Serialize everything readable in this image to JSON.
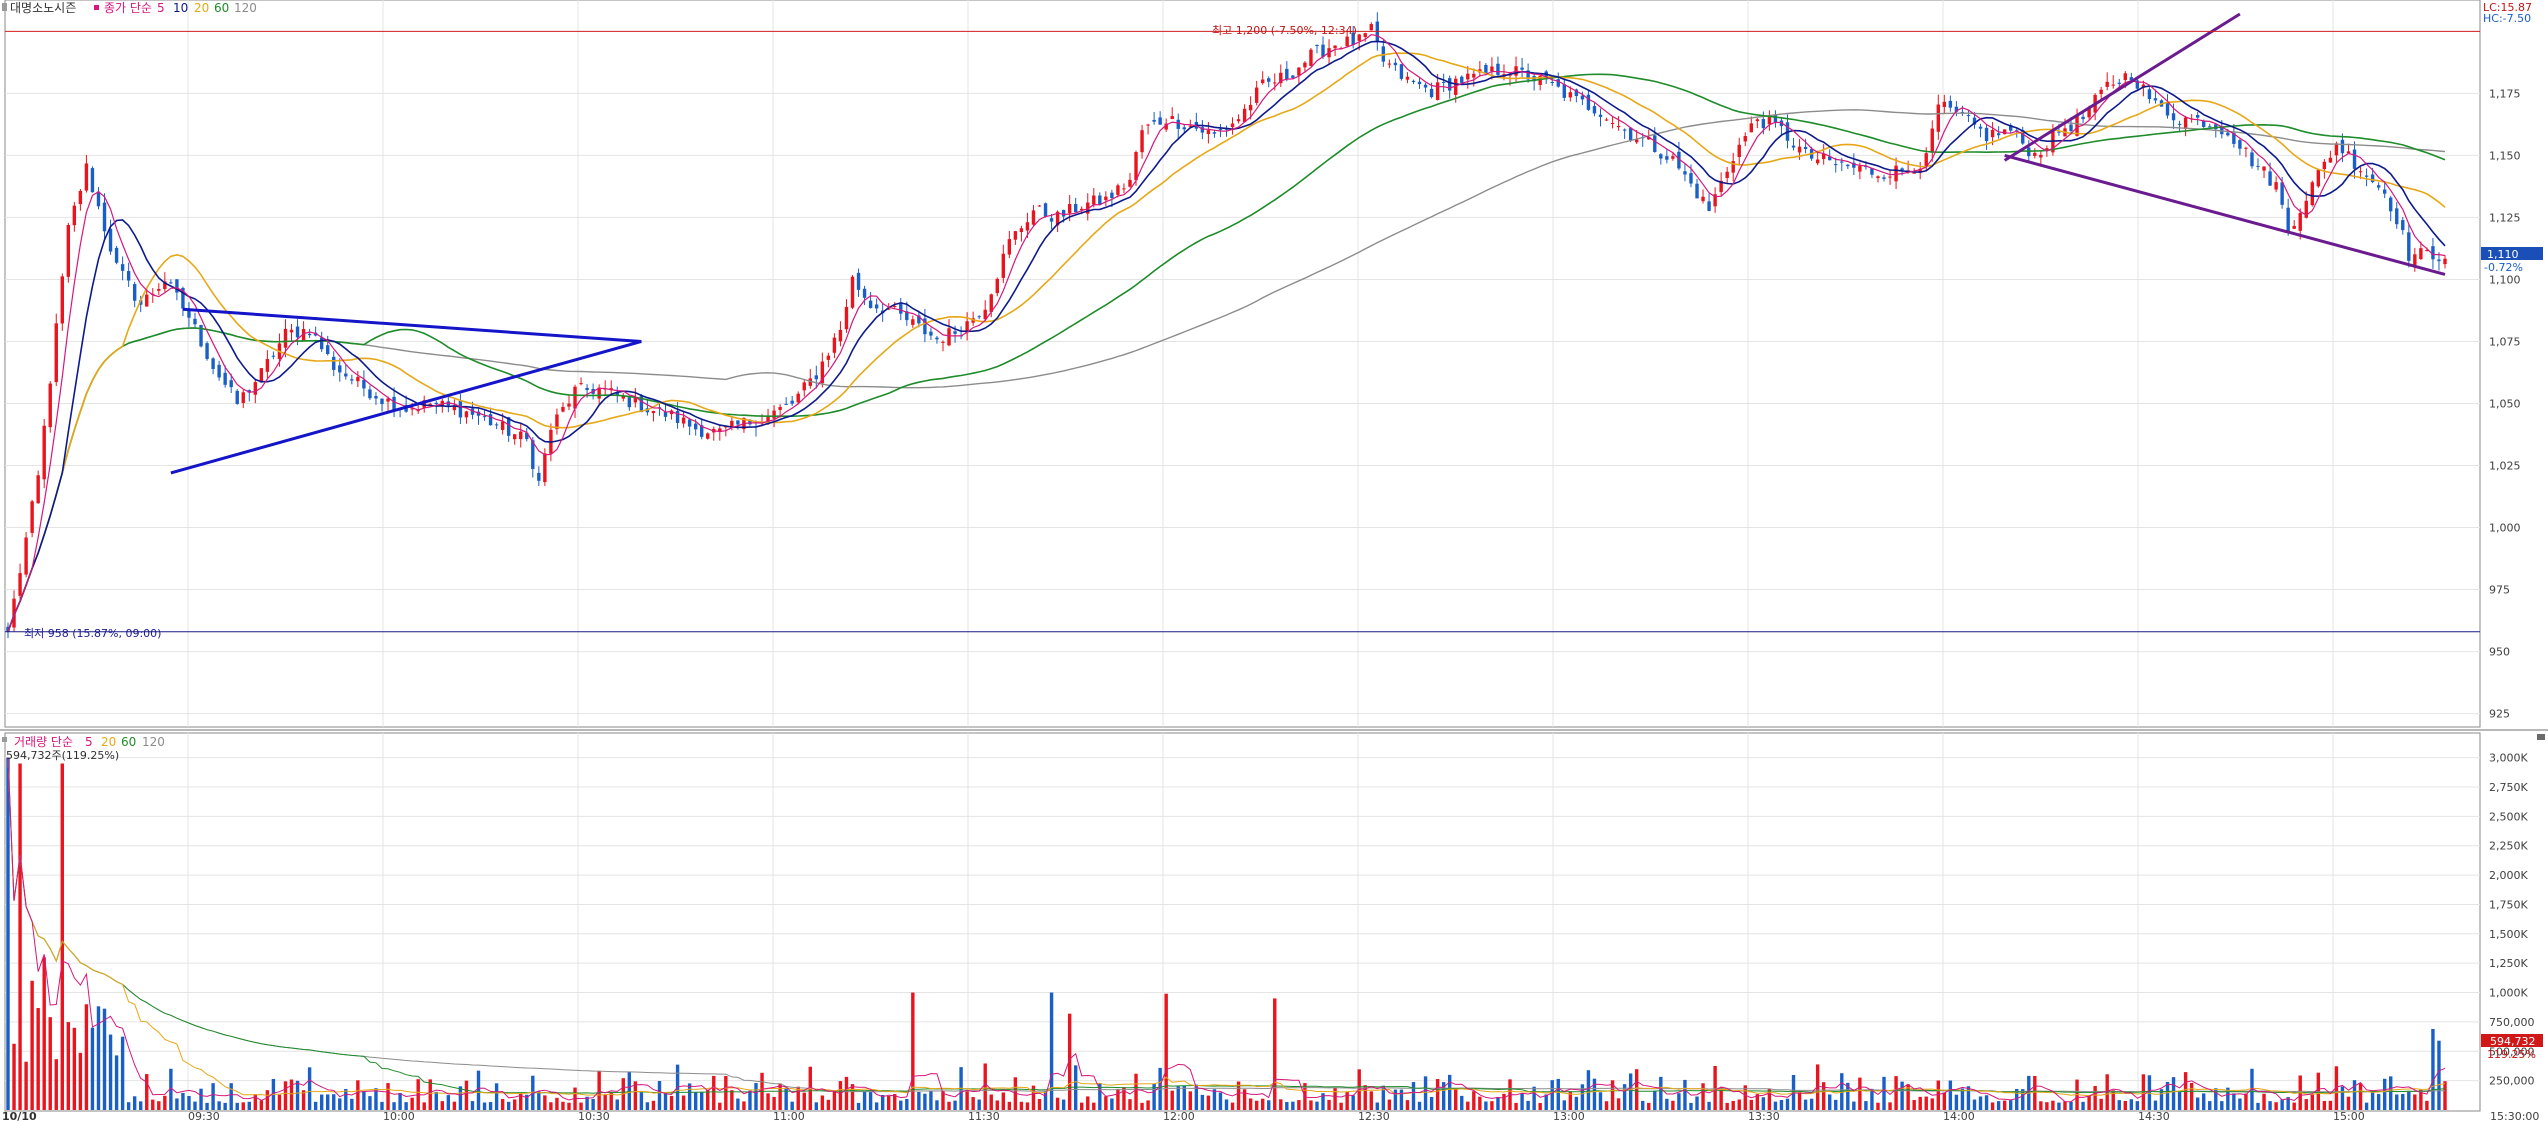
{
  "chart_data": [
    {
      "type": "candlestick",
      "panel": "price",
      "stock_name": "대명소노시즌",
      "ma_title": "종가 단순",
      "ma_periods": [
        "5",
        "10",
        "20",
        "60",
        "120"
      ],
      "y_ticks": [
        "1,175",
        "1,150",
        "1,125",
        "1,100",
        "1,075",
        "1,050",
        "1,025",
        "1,000",
        "975",
        "950",
        "925"
      ],
      "ylim": [
        920,
        1207
      ],
      "high_annotation": "최고 1,200 (-7.50%, 12:34)",
      "low_annotation": "최저 958 (15.87%, 09:00)",
      "high_value": 1200,
      "low_value": 958,
      "current_price": "1,110",
      "current_change": "-0.72%",
      "lc_label": "LC:15.87",
      "hc_label": "HC:-7.50",
      "series": [
        {
          "name": "price",
          "anchors": [
            [
              0,
              958
            ],
            [
              5,
              1020
            ],
            [
              10,
              1120
            ],
            [
              13,
              1145
            ],
            [
              18,
              1105
            ],
            [
              22,
              1090
            ],
            [
              26,
              1100
            ],
            [
              30,
              1085
            ],
            [
              34,
              1065
            ],
            [
              38,
              1050
            ],
            [
              42,
              1062
            ],
            [
              46,
              1078
            ],
            [
              50,
              1080
            ],
            [
              54,
              1065
            ],
            [
              58,
              1058
            ],
            [
              62,
              1052
            ],
            [
              66,
              1048
            ],
            [
              70,
              1050
            ],
            [
              74,
              1048
            ],
            [
              78,
              1045
            ],
            [
              82,
              1040
            ],
            [
              86,
              1035
            ],
            [
              88,
              1018
            ],
            [
              90,
              1040
            ],
            [
              94,
              1055
            ],
            [
              98,
              1056
            ],
            [
              102,
              1052
            ],
            [
              106,
              1048
            ],
            [
              110,
              1045
            ],
            [
              114,
              1040
            ],
            [
              118,
              1038
            ],
            [
              122,
              1042
            ],
            [
              126,
              1045
            ],
            [
              130,
              1050
            ],
            [
              134,
              1062
            ],
            [
              138,
              1080
            ],
            [
              140,
              1100
            ],
            [
              143,
              1090
            ],
            [
              146,
              1088
            ],
            [
              150,
              1082
            ],
            [
              154,
              1076
            ],
            [
              158,
              1080
            ],
            [
              162,
              1090
            ],
            [
              166,
              1115
            ],
            [
              170,
              1128
            ],
            [
              174,
              1125
            ],
            [
              178,
              1130
            ],
            [
              182,
              1132
            ],
            [
              186,
              1140
            ],
            [
              188,
              1160
            ],
            [
              192,
              1165
            ],
            [
              196,
              1162
            ],
            [
              200,
              1158
            ],
            [
              204,
              1165
            ],
            [
              208,
              1178
            ],
            [
              212,
              1182
            ],
            [
              216,
              1190
            ],
            [
              220,
              1195
            ],
            [
              224,
              1196
            ],
            [
              226,
              1200
            ],
            [
              228,
              1188
            ],
            [
              232,
              1180
            ],
            [
              236,
              1176
            ],
            [
              240,
              1180
            ],
            [
              244,
              1182
            ],
            [
              248,
              1185
            ],
            [
              252,
              1182
            ],
            [
              256,
              1178
            ],
            [
              260,
              1172
            ],
            [
              264,
              1168
            ],
            [
              268,
              1160
            ],
            [
              272,
              1155
            ],
            [
              276,
              1148
            ],
            [
              280,
              1135
            ],
            [
              282,
              1128
            ],
            [
              286,
              1150
            ],
            [
              290,
              1165
            ],
            [
              294,
              1160
            ],
            [
              298,
              1150
            ],
            [
              302,
              1147
            ],
            [
              306,
              1145
            ],
            [
              310,
              1143
            ],
            [
              314,
              1144
            ],
            [
              318,
              1148
            ],
            [
              320,
              1170
            ],
            [
              324,
              1165
            ],
            [
              328,
              1158
            ],
            [
              332,
              1160
            ],
            [
              336,
              1150
            ],
            [
              340,
              1160
            ],
            [
              344,
              1165
            ],
            [
              348,
              1178
            ],
            [
              352,
              1183
            ],
            [
              356,
              1170
            ],
            [
              360,
              1165
            ],
            [
              364,
              1164
            ],
            [
              368,
              1160
            ],
            [
              372,
              1148
            ],
            [
              376,
              1138
            ],
            [
              378,
              1120
            ],
            [
              382,
              1138
            ],
            [
              386,
              1155
            ],
            [
              390,
              1145
            ],
            [
              394,
              1135
            ],
            [
              396,
              1125
            ],
            [
              398,
              1110
            ]
          ]
        }
      ],
      "trendlines": [
        {
          "name": "triangle-upper",
          "color": "#1414c8",
          "from": [
            29,
            1088
          ],
          "to": [
            105,
            1075
          ]
        },
        {
          "name": "triangle-lower",
          "color": "#1414c8",
          "from": [
            27,
            1022
          ],
          "to": [
            105,
            1075
          ]
        },
        {
          "name": "channel-upper",
          "color": "#6a1b8f",
          "from": [
            331,
            1148
          ],
          "to": [
            370,
            1207
          ]
        },
        {
          "name": "channel-lower",
          "color": "#6a1b8f",
          "from": [
            331,
            1150
          ],
          "to": [
            404,
            1102
          ]
        }
      ],
      "colors": {
        "up": "#e8141e",
        "down": "#1a5fc8",
        "ma5": "#d6177d",
        "ma10": "#0d1a8c",
        "ma20": "#e6a817",
        "ma60": "#1e8c2a",
        "ma120": "#8c8c8c"
      }
    },
    {
      "type": "bar",
      "panel": "volume",
      "title": "거래량 단순",
      "ma_periods": [
        "5",
        "20",
        "60",
        "120"
      ],
      "top_label": "594,732주(119.25%)",
      "y_ticks": [
        "3,000K",
        "2,750K",
        "2,500K",
        "2,250K",
        "2,000K",
        "1,750K",
        "1,500K",
        "1,250K",
        "1,000K",
        "750,000",
        "500,000",
        "250,000"
      ],
      "ylim": [
        0,
        3150000
      ],
      "current_volume": "594,732",
      "current_ratio": "119.25%",
      "peaks": [
        [
          0,
          3000000
        ],
        [
          2,
          2950000
        ],
        [
          4,
          1100000
        ],
        [
          6,
          1300000
        ],
        [
          9,
          2950000
        ],
        [
          11,
          700000
        ],
        [
          13,
          900000
        ],
        [
          150,
          1000000
        ],
        [
          173,
          1000000
        ],
        [
          176,
          820000
        ],
        [
          192,
          990000
        ],
        [
          210,
          950000
        ],
        [
          402,
          690000
        ],
        [
          403,
          590000
        ]
      ]
    }
  ],
  "x_axis": {
    "first_label": "10/10",
    "labels": [
      "09:30",
      "10:00",
      "10:30",
      "11:00",
      "11:30",
      "12:00",
      "12:30",
      "13:00",
      "13:30",
      "14:00",
      "14:30",
      "15:00",
      "15:30:00"
    ],
    "range_minutes": [
      0,
      390
    ]
  }
}
